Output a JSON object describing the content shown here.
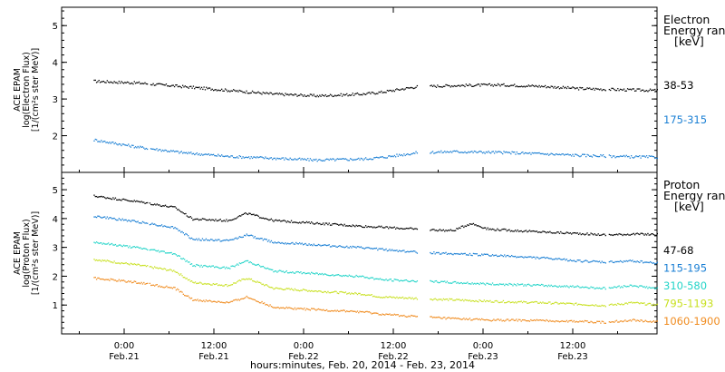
{
  "chart_data": [
    {
      "type": "scatter",
      "instrument": "ACE EPAM",
      "ylabel_lines": [
        "ACE EPAM",
        "log(Electron Flux)",
        "[1/(cm²s ster MeV)]"
      ],
      "yticks": [
        "2",
        "3",
        "4",
        "5"
      ],
      "ylim": [
        1,
        5.5
      ],
      "legend_title_lines": [
        "Electron",
        "Energy ran",
        "[keV]"
      ],
      "series": [
        {
          "name": "38-53",
          "color": "#000000",
          "points": [
            [
              0.0,
              3.5
            ],
            [
              0.25,
              3.45
            ],
            [
              0.5,
              3.35
            ],
            [
              0.75,
              3.25
            ],
            [
              1.0,
              3.15
            ],
            [
              1.25,
              3.1
            ],
            [
              1.5,
              3.15
            ],
            [
              1.6,
              3.2
            ],
            [
              1.8,
              3.35
            ],
            [
              2.0,
              3.38
            ],
            [
              2.25,
              3.4
            ],
            [
              2.5,
              3.36
            ],
            [
              2.7,
              3.3
            ],
            [
              2.85,
              3.28
            ],
            [
              3.0,
              3.26
            ],
            [
              3.25,
              3.24
            ],
            [
              3.45,
              3.2
            ]
          ]
        },
        {
          "name": "175-315",
          "color": "#1a7fd4",
          "points": [
            [
              0.0,
              1.9
            ],
            [
              0.25,
              1.7
            ],
            [
              0.5,
              1.55
            ],
            [
              0.75,
              1.45
            ],
            [
              1.0,
              1.4
            ],
            [
              1.25,
              1.35
            ],
            [
              1.5,
              1.38
            ],
            [
              1.6,
              1.42
            ],
            [
              1.8,
              1.55
            ],
            [
              2.0,
              1.58
            ],
            [
              2.25,
              1.56
            ],
            [
              2.5,
              1.52
            ],
            [
              2.7,
              1.48
            ],
            [
              2.85,
              1.46
            ],
            [
              3.0,
              1.44
            ],
            [
              3.25,
              1.42
            ],
            [
              3.45,
              1.4
            ]
          ]
        }
      ]
    },
    {
      "type": "scatter",
      "instrument": "ACE EPAM",
      "ylabel_lines": [
        "ACE EPAM",
        "log(Proton Flux)",
        "[1/(cm²s ster MeV)]"
      ],
      "yticks": [
        "1",
        "2",
        "3",
        "4",
        "5"
      ],
      "ylim": [
        0,
        5.6
      ],
      "legend_title_lines": [
        "Proton",
        "Energy ran",
        "[keV]"
      ],
      "series": [
        {
          "name": "47-68",
          "color": "#000000",
          "points": [
            [
              0.0,
              4.8
            ],
            [
              0.25,
              4.6
            ],
            [
              0.45,
              4.4
            ],
            [
              0.55,
              4.0
            ],
            [
              0.75,
              3.95
            ],
            [
              0.85,
              4.2
            ],
            [
              1.0,
              3.95
            ],
            [
              1.25,
              3.85
            ],
            [
              1.5,
              3.75
            ],
            [
              1.6,
              3.72
            ],
            [
              1.8,
              3.65
            ],
            [
              2.0,
              3.6
            ],
            [
              2.1,
              3.85
            ],
            [
              2.2,
              3.65
            ],
            [
              2.5,
              3.55
            ],
            [
              2.7,
              3.5
            ],
            [
              2.85,
              3.45
            ],
            [
              3.0,
              3.48
            ],
            [
              3.25,
              3.45
            ],
            [
              3.45,
              3.42
            ]
          ]
        },
        {
          "name": "115-195",
          "color": "#1a7fd4",
          "points": [
            [
              0.0,
              4.1
            ],
            [
              0.25,
              3.9
            ],
            [
              0.45,
              3.7
            ],
            [
              0.55,
              3.3
            ],
            [
              0.75,
              3.25
            ],
            [
              0.85,
              3.45
            ],
            [
              1.0,
              3.2
            ],
            [
              1.25,
              3.1
            ],
            [
              1.5,
              3.0
            ],
            [
              1.6,
              2.95
            ],
            [
              1.8,
              2.85
            ],
            [
              2.0,
              2.8
            ],
            [
              2.2,
              2.75
            ],
            [
              2.5,
              2.65
            ],
            [
              2.7,
              2.55
            ],
            [
              2.85,
              2.5
            ],
            [
              3.0,
              2.55
            ],
            [
              3.25,
              2.4
            ],
            [
              3.45,
              2.3
            ]
          ]
        },
        {
          "name": "310-580",
          "color": "#22d4c8",
          "points": [
            [
              0.0,
              3.2
            ],
            [
              0.25,
              3.0
            ],
            [
              0.45,
              2.8
            ],
            [
              0.55,
              2.4
            ],
            [
              0.75,
              2.3
            ],
            [
              0.85,
              2.55
            ],
            [
              1.0,
              2.2
            ],
            [
              1.25,
              2.1
            ],
            [
              1.5,
              2.0
            ],
            [
              1.6,
              1.9
            ],
            [
              1.8,
              1.85
            ],
            [
              2.0,
              1.8
            ],
            [
              2.2,
              1.75
            ],
            [
              2.5,
              1.7
            ],
            [
              2.7,
              1.65
            ],
            [
              2.85,
              1.6
            ],
            [
              3.0,
              1.7
            ],
            [
              3.25,
              1.5
            ],
            [
              3.45,
              1.45
            ]
          ]
        },
        {
          "name": "795-1193",
          "color": "#c8e020",
          "points": [
            [
              0.0,
              2.6
            ],
            [
              0.25,
              2.4
            ],
            [
              0.45,
              2.2
            ],
            [
              0.55,
              1.8
            ],
            [
              0.75,
              1.7
            ],
            [
              0.85,
              1.95
            ],
            [
              1.0,
              1.6
            ],
            [
              1.25,
              1.5
            ],
            [
              1.5,
              1.4
            ],
            [
              1.6,
              1.3
            ],
            [
              1.8,
              1.25
            ],
            [
              2.0,
              1.2
            ],
            [
              2.2,
              1.15
            ],
            [
              2.5,
              1.1
            ],
            [
              2.7,
              1.05
            ],
            [
              2.85,
              1.0
            ],
            [
              3.0,
              1.1
            ],
            [
              3.25,
              0.95
            ],
            [
              3.45,
              0.9
            ]
          ]
        },
        {
          "name": "1060-1900",
          "color": "#f08c20",
          "points": [
            [
              0.0,
              1.95
            ],
            [
              0.25,
              1.8
            ],
            [
              0.45,
              1.6
            ],
            [
              0.55,
              1.2
            ],
            [
              0.75,
              1.1
            ],
            [
              0.85,
              1.3
            ],
            [
              1.0,
              0.95
            ],
            [
              1.25,
              0.85
            ],
            [
              1.5,
              0.78
            ],
            [
              1.6,
              0.7
            ],
            [
              1.8,
              0.62
            ],
            [
              2.0,
              0.55
            ],
            [
              2.2,
              0.5
            ],
            [
              2.5,
              0.48
            ],
            [
              2.7,
              0.45
            ],
            [
              2.85,
              0.42
            ],
            [
              3.0,
              0.5
            ],
            [
              3.25,
              0.38
            ],
            [
              3.45,
              0.32
            ]
          ]
        }
      ]
    }
  ],
  "x_axis": {
    "ticks": [
      {
        "time": "0:00",
        "date": "Feb.21"
      },
      {
        "time": "12:00",
        "date": "Feb.21"
      },
      {
        "time": "0:00",
        "date": "Feb.22"
      },
      {
        "time": "12:00",
        "date": "Feb.22"
      },
      {
        "time": "0:00",
        "date": "Feb.23"
      },
      {
        "time": "12:00",
        "date": "Feb.23"
      }
    ],
    "label": "hours:minutes, Feb. 20, 2014 - Feb. 23, 2014"
  }
}
